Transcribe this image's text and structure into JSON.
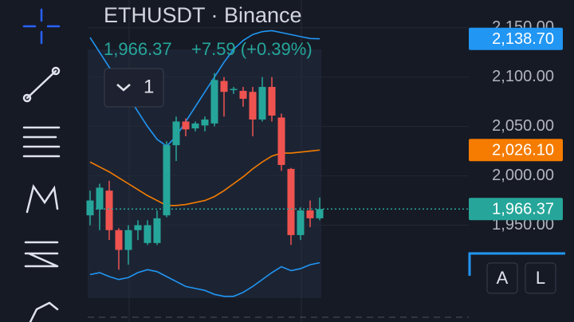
{
  "chart_data": {
    "type": "candlestick",
    "title": "ETHUSDT · Binance",
    "last_price": "1,966.37",
    "change": "+7.59 (+0.39%)",
    "interval_button": "1",
    "buttons": [
      "A",
      "L"
    ],
    "up_color": "#26a69a",
    "down_color": "#ef5350",
    "open": [
      1960,
      1966,
      1985,
      1945,
      1925,
      1945,
      1932,
      1932,
      1960,
      2031,
      2055,
      2048,
      2051,
      2053,
      2096,
      2087,
      2086,
      2085,
      2057,
      2090,
      2059,
      2007,
      1940,
      1965,
      1957
    ],
    "high": [
      1985,
      1992,
      1995,
      1947,
      1950,
      1955,
      1955,
      1965,
      2035,
      2060,
      2058,
      2055,
      2060,
      2104,
      2100,
      2090,
      2090,
      2090,
      2100,
      2100,
      2063,
      2008,
      1968,
      1975,
      1978
    ],
    "low": [
      1950,
      1945,
      1935,
      1905,
      1910,
      1935,
      1930,
      1930,
      1958,
      2015,
      2040,
      2045,
      2045,
      2050,
      2060,
      2083,
      2070,
      2040,
      2055,
      2055,
      2005,
      1930,
      1935,
      1948,
      1955
    ],
    "close": [
      1975,
      1988,
      1945,
      1925,
      1945,
      1950,
      1950,
      1957,
      2031,
      2055,
      2047,
      2053,
      2057,
      2097,
      2085,
      2088,
      2078,
      2057,
      2090,
      2061,
      2011,
      1940,
      1965,
      1957,
      1966.37
    ],
    "series": [
      {
        "color": "#2196f3",
        "values": [
          2140,
          2125,
          2110,
          2095,
          2080,
          2065,
          2050,
          2037,
          2030,
          2040,
          2055,
          2070,
          2085,
          2100,
          2115,
          2128,
          2137,
          2143,
          2146,
          2147,
          2145,
          2143,
          2141,
          2139,
          2138.7
        ]
      },
      {
        "color": "#f57c00",
        "values": [
          2014,
          2009,
          2004,
          1998,
          1992,
          1986,
          1980,
          1975,
          1970,
          1970,
          1971,
          1973,
          1975,
          1979,
          1985,
          1992,
          1999,
          2007,
          2014,
          2020,
          2023,
          2023,
          2024,
          2025,
          2026.1
        ]
      },
      {
        "color": "#2196f3",
        "values": [
          1900,
          1902,
          1898,
          1895,
          1897,
          1902,
          1905,
          1903,
          1898,
          1893,
          1888,
          1886,
          1884,
          1880,
          1878,
          1878,
          1882,
          1888,
          1895,
          1902,
          1908,
          1904,
          1906,
          1910,
          1912
        ]
      }
    ],
    "markers": [
      {
        "value": 2138.7,
        "label": "2,138.70",
        "color": "#2196f3"
      },
      {
        "value": 2026.1,
        "label": "2,026.10",
        "color": "#f57c00"
      },
      {
        "value": 1966.37,
        "label": "1,966.37",
        "color": "#26a69a",
        "dotted": true
      }
    ],
    "ylim": [
      1852,
      2178
    ],
    "yticks": [
      {
        "value": 1950,
        "label": "1,950.00"
      },
      {
        "value": 2000,
        "label": "2,000.00"
      },
      {
        "value": 2050,
        "label": "2,050.00"
      },
      {
        "value": 2100,
        "label": "2,100.00"
      },
      {
        "value": 2150,
        "label": "2,150.00"
      }
    ],
    "grid": true
  }
}
